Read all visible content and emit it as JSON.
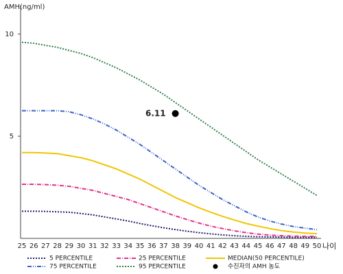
{
  "chart_data": {
    "type": "line",
    "y_label": "AMH(ng/ml)",
    "x_label": "나이",
    "x": [
      25,
      26,
      27,
      28,
      29,
      30,
      31,
      32,
      33,
      34,
      35,
      36,
      37,
      38,
      39,
      40,
      41,
      42,
      43,
      44,
      45,
      46,
      47,
      48,
      49,
      50
    ],
    "xlim": [
      25,
      50
    ],
    "ylim": [
      0,
      11.4
    ],
    "yticks": [
      5,
      10
    ],
    "series": [
      {
        "name": "5 PERCENTILE",
        "color": "#1a1a6e",
        "dash": "2 2",
        "values": [
          1.33,
          1.33,
          1.32,
          1.3,
          1.28,
          1.22,
          1.15,
          1.05,
          0.95,
          0.85,
          0.73,
          0.62,
          0.52,
          0.43,
          0.35,
          0.28,
          0.22,
          0.17,
          0.13,
          0.1,
          0.08,
          0.07,
          0.06,
          0.05,
          0.05,
          0.05
        ]
      },
      {
        "name": "25 PERCENTILE",
        "color": "#e0308a",
        "dash": "6 2 1 2",
        "values": [
          2.65,
          2.65,
          2.63,
          2.6,
          2.55,
          2.45,
          2.35,
          2.2,
          2.05,
          1.9,
          1.7,
          1.5,
          1.3,
          1.1,
          0.92,
          0.75,
          0.6,
          0.48,
          0.37,
          0.28,
          0.21,
          0.16,
          0.13,
          0.11,
          0.1,
          0.1
        ]
      },
      {
        "name": "MEDIAN(50 PERCENTILE)",
        "color": "#f0c400",
        "dash": "",
        "values": [
          4.2,
          4.2,
          4.18,
          4.15,
          4.05,
          3.95,
          3.8,
          3.6,
          3.4,
          3.15,
          2.9,
          2.6,
          2.3,
          2.0,
          1.75,
          1.5,
          1.28,
          1.08,
          0.9,
          0.73,
          0.6,
          0.48,
          0.38,
          0.31,
          0.26,
          0.23
        ]
      },
      {
        "name": "75 PERCENTILE",
        "color": "#3a60c8",
        "dash": "6 2 1 2 1 2",
        "values": [
          6.25,
          6.25,
          6.25,
          6.25,
          6.2,
          6.05,
          5.85,
          5.6,
          5.3,
          4.95,
          4.6,
          4.2,
          3.8,
          3.4,
          3.0,
          2.6,
          2.25,
          1.9,
          1.6,
          1.3,
          1.05,
          0.85,
          0.7,
          0.58,
          0.5,
          0.43
        ]
      },
      {
        "name": "95 PERCENTILE",
        "color": "#2e7d4a",
        "dash": "2 2",
        "values": [
          9.6,
          9.55,
          9.45,
          9.35,
          9.2,
          9.05,
          8.85,
          8.6,
          8.35,
          8.05,
          7.75,
          7.4,
          7.05,
          6.65,
          6.25,
          5.85,
          5.45,
          5.05,
          4.65,
          4.25,
          3.85,
          3.5,
          3.15,
          2.8,
          2.45,
          2.1
        ]
      }
    ],
    "point": {
      "name": "수진자의 AMH 농도",
      "x": 38,
      "value": 6.11,
      "color": "#000000"
    }
  }
}
